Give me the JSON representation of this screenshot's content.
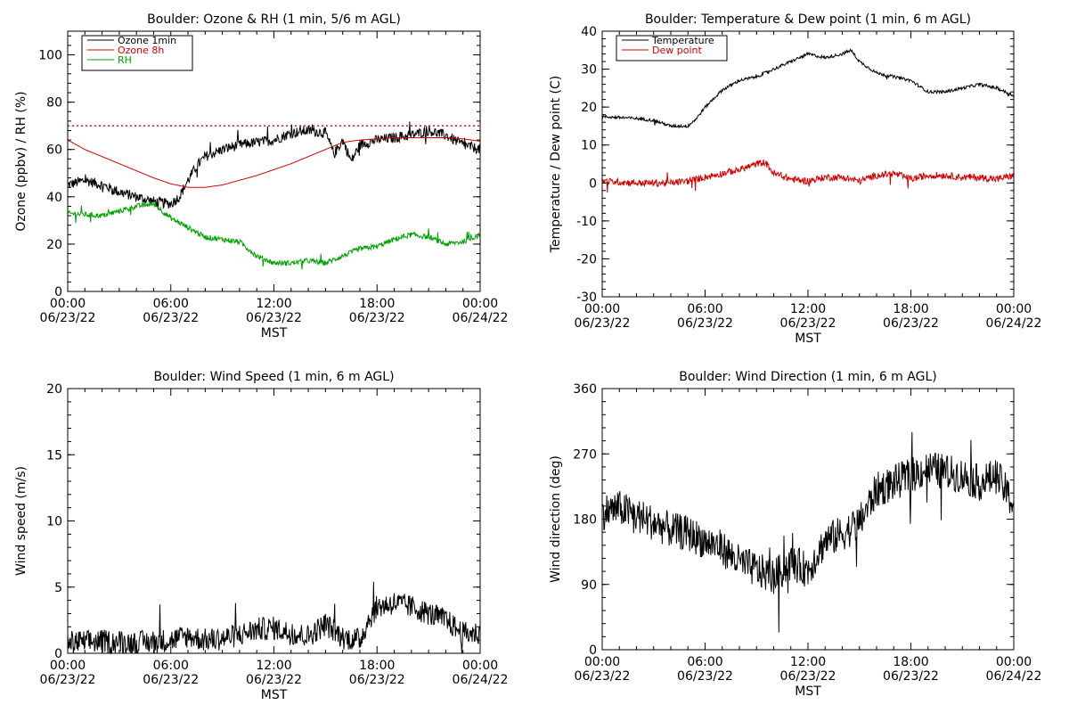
{
  "x_axis": {
    "title": "MST",
    "times": [
      "00:00",
      "06:00",
      "12:00",
      "18:00",
      "00:00"
    ],
    "dates": [
      "06/23/22",
      "06/23/22",
      "06/23/22",
      "06/23/22",
      "06/24/22"
    ]
  },
  "chart_data": [
    {
      "type": "line",
      "title": "Boulder: Ozone & RH (1 min, 5/6 m AGL)",
      "xlabel": "MST",
      "ylabel": "Ozone (ppbv) / RH (%)",
      "xlim": [
        "2022-06-23 00:00",
        "2022-06-24 00:00"
      ],
      "ylim": [
        0,
        110
      ],
      "yticks": [
        0,
        20,
        40,
        60,
        80,
        100
      ],
      "grid": false,
      "legend_position": "top-left",
      "reference_lines": [
        {
          "y": 70,
          "style": "dotted",
          "color": "#d40000"
        }
      ],
      "series": [
        {
          "name": "Ozone 1min",
          "color": "#000000",
          "x_hours": [
            0,
            1,
            2,
            3,
            4,
            5,
            6,
            6.5,
            7,
            7.5,
            8,
            9,
            10,
            11,
            12,
            13,
            14,
            15,
            15.5,
            16,
            16.5,
            17,
            18,
            19,
            20,
            21,
            22,
            23,
            24
          ],
          "values": [
            45,
            47,
            45,
            42,
            40,
            38,
            37,
            40,
            47,
            53,
            57,
            60,
            62,
            63,
            64,
            67,
            68,
            67,
            58,
            64,
            55,
            62,
            64,
            65,
            66,
            68,
            66,
            62,
            60
          ],
          "noise": 2.2
        },
        {
          "name": "Ozone 8h",
          "color": "#d40000",
          "x_hours": [
            0,
            1,
            2,
            3,
            4,
            5,
            6,
            7,
            8,
            9,
            10,
            11,
            12,
            13,
            14,
            15,
            16,
            17,
            18,
            19,
            20,
            21,
            22,
            23,
            24
          ],
          "values": [
            64,
            60,
            57,
            54,
            51,
            48,
            45.5,
            44,
            44,
            45,
            47,
            49,
            51.5,
            54,
            57,
            60,
            63,
            64,
            64.5,
            65,
            65,
            65,
            65,
            64.5,
            63.5
          ],
          "noise": 0
        },
        {
          "name": "RH",
          "color": "#00a000",
          "x_hours": [
            0,
            2,
            3,
            4,
            5,
            6,
            7,
            8,
            9,
            10,
            11,
            12,
            13,
            14,
            15,
            16,
            17,
            18,
            19,
            20,
            21,
            22,
            23,
            24
          ],
          "values": [
            33,
            32,
            34,
            36,
            37,
            31,
            27,
            23,
            22,
            21,
            15,
            12,
            12,
            13,
            12,
            15,
            18,
            19,
            22,
            24,
            23,
            20,
            21,
            24
          ],
          "noise": 1.1
        }
      ]
    },
    {
      "type": "line",
      "title": "Boulder: Temperature & Dew point (1 min, 6 m AGL)",
      "xlabel": "MST",
      "ylabel": "Temperature / Dew point (C)",
      "xlim": [
        "2022-06-23 00:00",
        "2022-06-24 00:00"
      ],
      "ylim": [
        -30,
        40
      ],
      "yticks": [
        -30,
        -20,
        -10,
        0,
        10,
        20,
        30,
        40
      ],
      "grid": false,
      "legend_position": "top-left",
      "series": [
        {
          "name": "Temperature",
          "color": "#000000",
          "x_hours": [
            0,
            2,
            3,
            4,
            5,
            5.5,
            6,
            7,
            8,
            9,
            10,
            11,
            12,
            13,
            14,
            14.5,
            15,
            16,
            17,
            18,
            19,
            20,
            21,
            22,
            23,
            24
          ],
          "values": [
            17.5,
            17,
            16.5,
            15,
            15,
            17,
            20,
            24.5,
            27,
            28,
            30,
            32,
            34,
            33,
            34,
            35,
            32,
            29,
            28,
            27,
            24,
            24,
            25,
            26,
            25,
            23
          ],
          "noise": 0.4
        },
        {
          "name": "Dew point",
          "color": "#d40000",
          "x_hours": [
            0,
            2,
            4,
            5,
            6,
            7,
            8,
            9,
            9.5,
            10,
            11,
            12,
            13,
            14,
            15,
            16,
            17,
            18,
            19,
            20,
            21,
            22,
            23,
            24
          ],
          "values": [
            0.5,
            0,
            0,
            0.5,
            1.5,
            2.5,
            3.5,
            5,
            5.5,
            2.5,
            1,
            0.5,
            1.5,
            1.5,
            0.5,
            2,
            2.5,
            1,
            2,
            2,
            1.5,
            1.5,
            1,
            2
          ],
          "noise": 0.9
        }
      ]
    },
    {
      "type": "line",
      "title": "Boulder: Wind Speed (1 min, 6 m AGL)",
      "xlabel": "MST",
      "ylabel": "Wind speed (m/s)",
      "xlim": [
        "2022-06-23 00:00",
        "2022-06-24 00:00"
      ],
      "ylim": [
        0,
        20
      ],
      "yticks": [
        0,
        5,
        10,
        15,
        20
      ],
      "grid": false,
      "series": [
        {
          "color": "#000000",
          "x_hours": [
            0,
            2,
            4,
            6,
            7,
            8,
            9,
            10,
            11,
            12,
            13,
            14,
            15,
            16,
            17,
            17.5,
            18,
            19,
            20,
            21,
            22,
            23,
            24
          ],
          "values": [
            0.8,
            0.9,
            0.8,
            1.0,
            1.3,
            1.0,
            1.1,
            1.4,
            1.8,
            1.9,
            1.5,
            1.3,
            2.2,
            1.2,
            1.0,
            2.5,
            3.5,
            3.8,
            3.5,
            3.0,
            2.5,
            1.5,
            1.5
          ],
          "noise": 0.9
        }
      ]
    },
    {
      "type": "line",
      "title": "Boulder: Wind Direction (1 min, 6 m AGL)",
      "xlabel": "MST",
      "ylabel": "Wind direction (deg)",
      "xlim": [
        "2022-06-23 00:00",
        "2022-06-24 00:00"
      ],
      "ylim": [
        0,
        360
      ],
      "yticks": [
        0,
        90,
        180,
        270,
        360
      ],
      "grid": false,
      "series": [
        {
          "color": "#000000",
          "x_hours": [
            0,
            1,
            2,
            3,
            4,
            5,
            6,
            7,
            8,
            9,
            10,
            11,
            12,
            13,
            14,
            15,
            16,
            17,
            18,
            19,
            20,
            21,
            22,
            23,
            24
          ],
          "values": [
            190,
            195,
            185,
            175,
            165,
            160,
            150,
            140,
            120,
            110,
            100,
            120,
            110,
            150,
            160,
            175,
            220,
            230,
            240,
            250,
            245,
            240,
            230,
            240,
            200
          ],
          "noise": 25
        }
      ]
    }
  ]
}
